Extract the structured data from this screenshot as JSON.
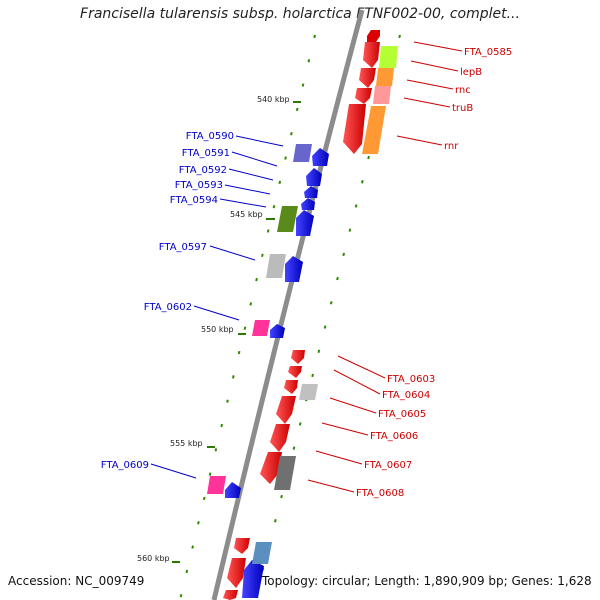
{
  "title": "Francisella tularensis subsp. holarctica FTNF002-00, complet...",
  "accession": "Accession: NC_009749",
  "topology": "Topology: circular; Length: 1,890,909 bp; Genes: 1,628",
  "colors": {
    "backbone": "#8c8c8c",
    "forward_label": "#cc0000",
    "reverse_label": "#0000cc",
    "tick": "#2d7a00"
  },
  "ticks": [
    "540 kbp",
    "545 kbp",
    "550 kbp",
    "555 kbp",
    "560 kbp"
  ],
  "right_labels": [
    "FTA_0585",
    "lepB",
    "rnc",
    "truB",
    "rnr",
    "FTA_0603",
    "FTA_0604",
    "FTA_0605",
    "FTA_0606",
    "FTA_0607",
    "FTA_0608"
  ],
  "left_labels": [
    "FTA_0590",
    "FTA_0591",
    "FTA_0592",
    "FTA_0593",
    "FTA_0594",
    "FTA_0597",
    "FTA_0602",
    "FTA_0609"
  ],
  "genes": [
    {
      "name": "FTA_0585",
      "strand": "forward",
      "color": "#ff0000"
    },
    {
      "name": "lepB",
      "strand": "forward",
      "color": "#ff0000"
    },
    {
      "name": "rnc",
      "strand": "forward",
      "color": "#ff0000"
    },
    {
      "name": "truB",
      "strand": "forward",
      "color": "#ff0000"
    },
    {
      "name": "rnr",
      "strand": "forward",
      "color": "#ff0000"
    },
    {
      "name": "FTA_0590",
      "strand": "reverse",
      "color": "#0000ff"
    },
    {
      "name": "FTA_0591",
      "strand": "reverse",
      "color": "#0000ff"
    },
    {
      "name": "FTA_0592",
      "strand": "reverse",
      "color": "#0000ff"
    },
    {
      "name": "FTA_0593",
      "strand": "reverse",
      "color": "#0000ff"
    },
    {
      "name": "FTA_0594",
      "strand": "reverse",
      "color": "#0000ff"
    },
    {
      "name": "FTA_0597",
      "strand": "reverse",
      "color": "#0000ff"
    },
    {
      "name": "FTA_0602",
      "strand": "reverse",
      "color": "#0000ff"
    },
    {
      "name": "FTA_0603",
      "strand": "forward",
      "color": "#ff0000"
    },
    {
      "name": "FTA_0604",
      "strand": "forward",
      "color": "#ff0000"
    },
    {
      "name": "FTA_0605",
      "strand": "forward",
      "color": "#ff0000"
    },
    {
      "name": "FTA_0606",
      "strand": "forward",
      "color": "#ff0000"
    },
    {
      "name": "FTA_0607",
      "strand": "forward",
      "color": "#ff0000"
    },
    {
      "name": "FTA_0608",
      "strand": "forward",
      "color": "#ff0000"
    },
    {
      "name": "FTA_0609",
      "strand": "reverse",
      "color": "#0000ff"
    }
  ],
  "cog_colors": [
    "#b3ff33",
    "#ff9933",
    "#ff9999",
    "#6666cc",
    "#5a8a1a",
    "#bbbbbb",
    "#ff3399",
    "#c0c0c0",
    "#707070",
    "#5b8fbf"
  ]
}
